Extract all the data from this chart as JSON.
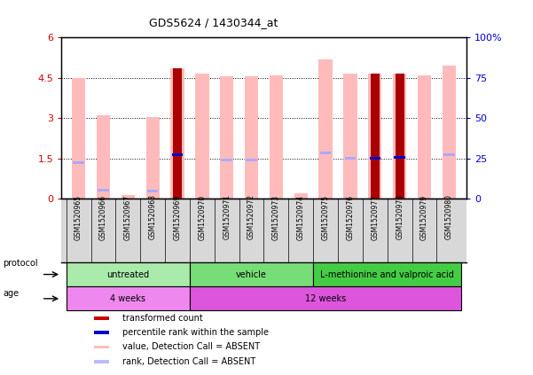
{
  "title": "GDS5624 / 1430344_at",
  "samples": [
    "GSM1520965",
    "GSM1520966",
    "GSM1520967",
    "GSM1520968",
    "GSM1520969",
    "GSM1520970",
    "GSM1520971",
    "GSM1520972",
    "GSM1520973",
    "GSM1520974",
    "GSM1520975",
    "GSM1520976",
    "GSM1520977",
    "GSM1520978",
    "GSM1520979",
    "GSM1520980"
  ],
  "pink_values": [
    4.5,
    3.1,
    0.15,
    3.05,
    4.85,
    4.65,
    4.55,
    4.55,
    4.6,
    0.22,
    5.2,
    4.65,
    4.65,
    4.65,
    4.6,
    4.95
  ],
  "red_values": [
    0,
    0,
    0,
    0,
    4.85,
    0,
    0,
    0,
    0,
    0,
    0,
    0,
    4.65,
    4.65,
    0,
    0
  ],
  "blue_rank_values": [
    0,
    0,
    0,
    0,
    1.65,
    0,
    0,
    0,
    0,
    0,
    0,
    0,
    1.5,
    1.55,
    0,
    0
  ],
  "light_blue_rank_values": [
    1.35,
    0.32,
    0,
    0.28,
    0,
    0,
    1.45,
    1.43,
    0,
    0,
    1.7,
    1.5,
    0,
    0,
    0,
    1.65
  ],
  "ylim_left": [
    0,
    6
  ],
  "ylim_right": [
    0,
    100
  ],
  "yticks_left": [
    0,
    1.5,
    3.0,
    4.5,
    6.0
  ],
  "ytick_labels_left": [
    "0",
    "1.5",
    "3",
    "4.5",
    "6"
  ],
  "yticks_right": [
    0,
    25,
    50,
    75,
    100
  ],
  "ytick_labels_right": [
    "0",
    "25",
    "50",
    "75",
    "100%"
  ],
  "protocol_groups": [
    {
      "label": "untreated",
      "start": 0,
      "end": 4,
      "color": "#aaeaaa"
    },
    {
      "label": "vehicle",
      "start": 5,
      "end": 9,
      "color": "#77dd77"
    },
    {
      "label": "L-methionine and valproic acid",
      "start": 10,
      "end": 15,
      "color": "#44cc44"
    }
  ],
  "age_groups": [
    {
      "label": "4 weeks",
      "start": 0,
      "end": 4,
      "color": "#ee88ee"
    },
    {
      "label": "12 weeks",
      "start": 5,
      "end": 15,
      "color": "#dd55dd"
    }
  ],
  "legend_items": [
    {
      "color": "#cc0000",
      "label": "transformed count"
    },
    {
      "color": "#0000cc",
      "label": "percentile rank within the sample"
    },
    {
      "color": "#ffbbbb",
      "label": "value, Detection Call = ABSENT"
    },
    {
      "color": "#bbbbff",
      "label": "rank, Detection Call = ABSENT"
    }
  ],
  "pink_color": "#ffbbbb",
  "red_color": "#aa0000",
  "blue_color": "#0000cc",
  "light_blue_color": "#aaaaff",
  "left_tick_color": "#cc0000",
  "right_tick_color": "#0000cc"
}
